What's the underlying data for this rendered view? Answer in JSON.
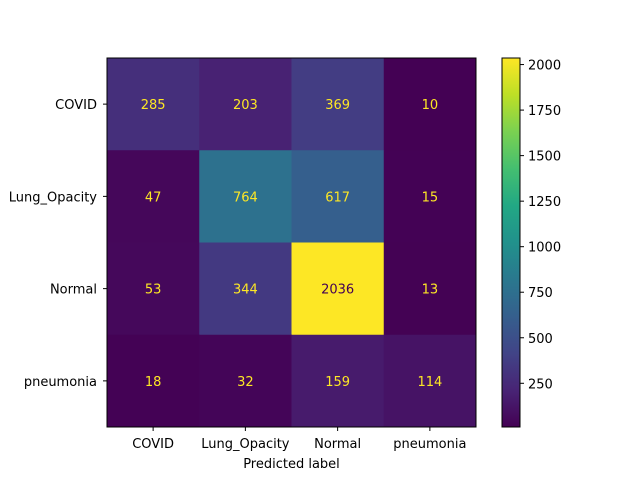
{
  "chart_data": {
    "type": "heatmap",
    "title": "",
    "xlabel": "Predicted label",
    "ylabel": "",
    "x_categories": [
      "COVID",
      "Lung_Opacity",
      "Normal",
      "pneumonia"
    ],
    "y_categories": [
      "COVID",
      "Lung_Opacity",
      "Normal",
      "pneumonia"
    ],
    "values": [
      [
        285,
        203,
        369,
        10
      ],
      [
        47,
        764,
        617,
        15
      ],
      [
        53,
        344,
        2036,
        13
      ],
      [
        18,
        32,
        159,
        114
      ]
    ],
    "colormap": "viridis",
    "colorbar": {
      "range": [
        10,
        2036
      ],
      "ticks": [
        250,
        500,
        750,
        1000,
        1250,
        1500,
        1750,
        2000
      ]
    },
    "text_colors": {
      "on_dark": "#fde725",
      "on_light": "#440154"
    }
  }
}
